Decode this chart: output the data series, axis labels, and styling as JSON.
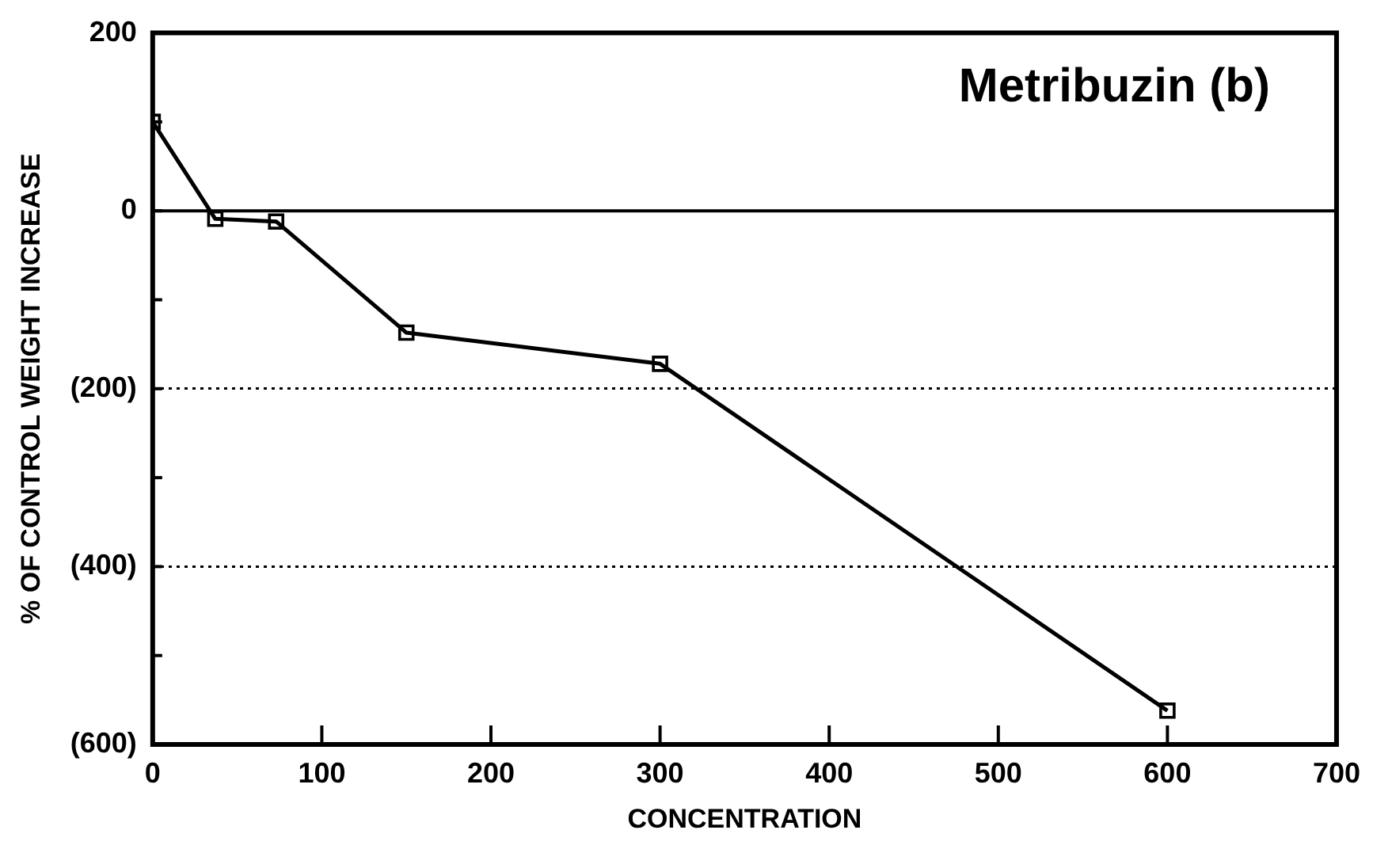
{
  "chart_data": {
    "type": "line",
    "title": "Metribuzin (b)",
    "xlabel": "CONCENTRATION",
    "ylabel": "% OF CONTROL WEIGHT INCREASE",
    "x": [
      0,
      37,
      73,
      150,
      300,
      600
    ],
    "series": [
      {
        "color": "#000000",
        "values": [
          100,
          -9,
          -12,
          -137,
          -172,
          -562
        ]
      }
    ],
    "xlim": [
      0,
      700
    ],
    "xticks": [
      0,
      100,
      200,
      300,
      400,
      500,
      600,
      700
    ],
    "ylim": [
      -600,
      200
    ],
    "yticks": [
      {
        "value": -600,
        "label": "(600)"
      },
      {
        "value": -500,
        "label": null
      },
      {
        "value": -400,
        "label": "(400)"
      },
      {
        "value": -300,
        "label": null
      },
      {
        "value": -200,
        "label": "(200)"
      },
      {
        "value": -100,
        "label": null
      },
      0,
      {
        "value": 100,
        "label": null
      },
      200
    ],
    "ref_lines": [
      {
        "axis": "y",
        "value": 0,
        "color": "#000000",
        "line_style": "solid"
      }
    ],
    "grid": "y",
    "marker": "square",
    "line_style": "solid",
    "legend": false
  }
}
